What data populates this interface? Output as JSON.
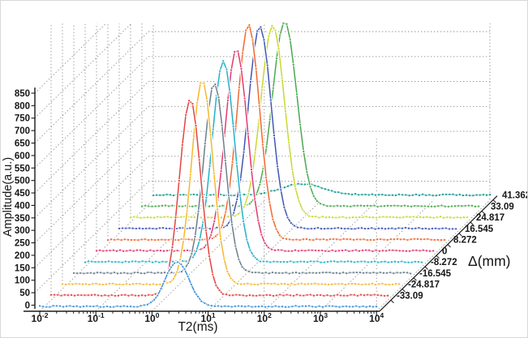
{
  "chart_data": {
    "type": "line",
    "variant": "3d-waterfall",
    "title": "",
    "xlabel": "T2(ms)",
    "ylabel": "Amplitude(a.u.)",
    "zlabel": "Δ(mm)",
    "x_axis": {
      "scale": "log10",
      "unit": "ms",
      "range_ms": [
        0.01,
        10000
      ],
      "tick_base": "10",
      "tick_exponents": [
        "-2",
        "-1",
        "0",
        "1",
        "2",
        "3",
        "4"
      ],
      "minor_ticks": "log mantissas 2-9 per decade"
    },
    "y_axis": {
      "range_au": [
        0,
        850
      ],
      "tick_step": 50,
      "tick_labels": [
        "0",
        "50",
        "100",
        "150",
        "200",
        "250",
        "300",
        "350",
        "400",
        "450",
        "500",
        "550",
        "600",
        "650",
        "700",
        "750",
        "800",
        "850"
      ]
    },
    "z_axis": {
      "tick_labels": [
        "-33.09",
        "-24.817",
        "-16.545",
        "-8.272",
        "0",
        "8.272",
        "16.545",
        "24.817",
        "33.09",
        "41.362"
      ],
      "note": "front-most curve carries no visible Δ tick label"
    },
    "grid": "dotted gray grid on left wall, floor and back wall",
    "legend_position": "none",
    "series": [
      {
        "delta_label": "",
        "color": "#3f93d6",
        "peak_t2_ms": 2.8,
        "peak_amplitude_au": 180,
        "sigma_log10": 0.21
      },
      {
        "delta_label": "-33.09",
        "color": "#e5443f",
        "peak_t2_ms": 3.0,
        "peak_amplitude_au": 785,
        "sigma_log10": 0.19
      },
      {
        "delta_label": "-24.817",
        "color": "#f5b82e",
        "peak_t2_ms": 3.1,
        "peak_amplitude_au": 815,
        "sigma_log10": 0.19
      },
      {
        "delta_label": "-16.545",
        "color": "#6b7f8e",
        "peak_t2_ms": 3.2,
        "peak_amplitude_au": 760,
        "sigma_log10": 0.19
      },
      {
        "delta_label": "-8.272",
        "color": "#22b2c8",
        "peak_t2_ms": 2.9,
        "peak_amplitude_au": 805,
        "sigma_log10": 0.2
      },
      {
        "delta_label": "0",
        "color": "#e13a71",
        "peak_t2_ms": 3.1,
        "peak_amplitude_au": 805,
        "sigma_log10": 0.2
      },
      {
        "delta_label": "8.272",
        "color": "#f2692f",
        "peak_t2_ms": 3.2,
        "peak_amplitude_au": 860,
        "sigma_log10": 0.2
      },
      {
        "delta_label": "16.545",
        "color": "#4156b4",
        "peak_t2_ms": 3.2,
        "peak_amplitude_au": 810,
        "sigma_log10": 0.205
      },
      {
        "delta_label": "24.817",
        "color": "#c8d831",
        "peak_t2_ms": 3.4,
        "peak_amplitude_au": 770,
        "sigma_log10": 0.21
      },
      {
        "delta_label": "33.09",
        "color": "#4aa94e",
        "peak_t2_ms": 3.5,
        "peak_amplitude_au": 740,
        "sigma_log10": 0.215
      },
      {
        "delta_label": "41.362",
        "color": "#13998f",
        "peak_t2_ms": 4.5,
        "peak_amplitude_au": 44,
        "sigma_log10": 0.38
      }
    ],
    "style": {
      "marker": "small round markers along every curve",
      "curve_outline": "#ffffff",
      "grid_color": "#8f8f8f",
      "axis_color": "#1a1a1a",
      "text_color": "#161616"
    }
  }
}
